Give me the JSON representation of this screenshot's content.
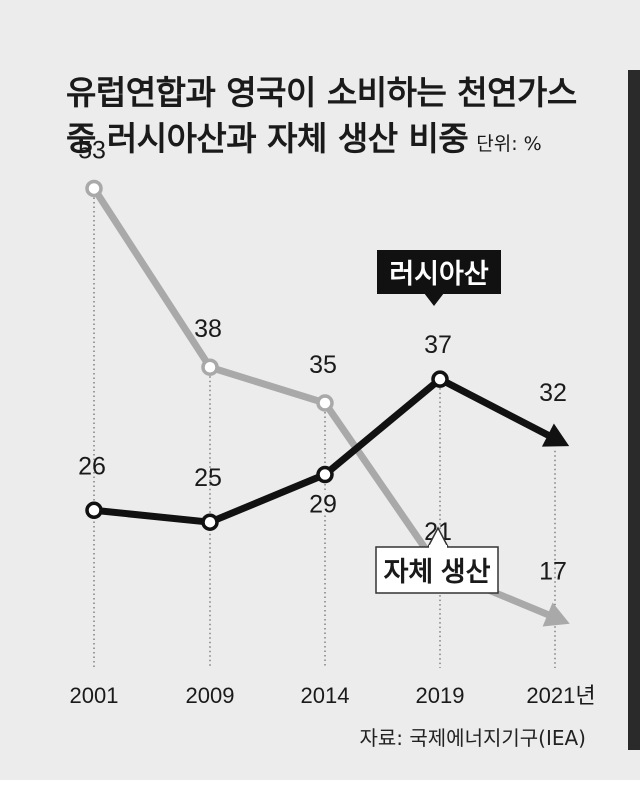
{
  "chart_data": {
    "type": "line",
    "title_line1": "유럽연합과 영국이 소비하는 천연가스",
    "title_line2": "중 러시아산과 자체 생산 비중",
    "unit": "단위: %",
    "categories": [
      "2001",
      "2009",
      "2014",
      "2019",
      "2021년"
    ],
    "series": [
      {
        "name": "러시아산",
        "values": [
          26,
          25,
          29,
          37,
          32
        ],
        "color": "#111111"
      },
      {
        "name": "자체 생산",
        "values": [
          53,
          38,
          35,
          21,
          17
        ],
        "color": "#a9a9a9"
      }
    ],
    "ylim": [
      10,
      60
    ],
    "grid": false,
    "source": "자료: 국제에너지기구(IEA)"
  }
}
